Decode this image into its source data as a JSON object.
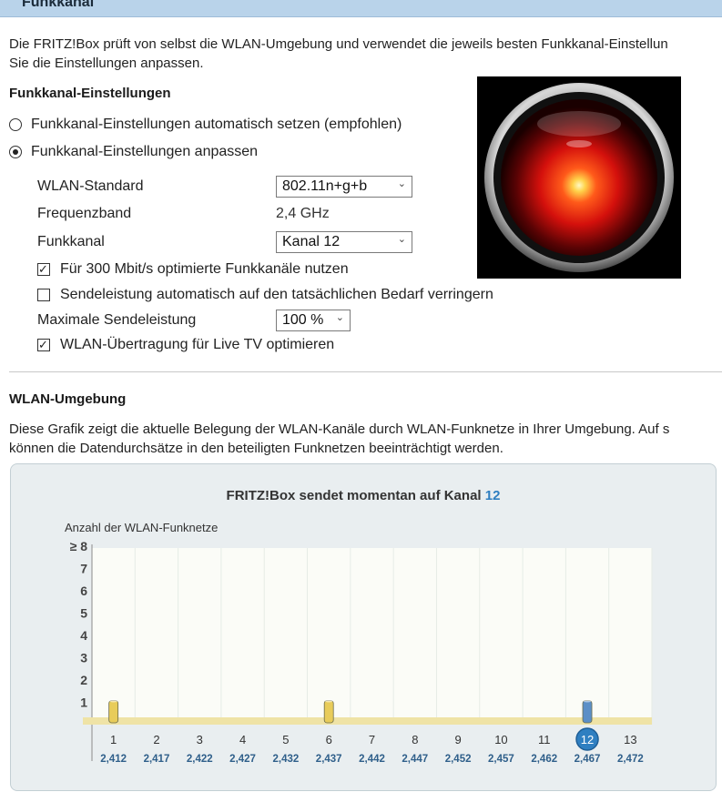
{
  "header": {
    "title": "Funkkanal"
  },
  "intro": {
    "line1": "Die FRITZ!Box prüft von selbst die WLAN-Umgebung und verwendet die jeweils besten Funkkanal-Einstellun",
    "line2": "Sie die Einstellungen anpassen."
  },
  "settings": {
    "heading": "Funkkanal-Einstellungen",
    "radio_auto": "Funkkanal-Einstellungen automatisch setzen (empfohlen)",
    "radio_custom": "Funkkanal-Einstellungen anpassen",
    "radio_selected": "custom",
    "wlan_standard_label": "WLAN-Standard",
    "wlan_standard_value": "802.11n+g+b",
    "frequency_label": "Frequenzband",
    "frequency_value": "2,4 GHz",
    "channel_label": "Funkkanal",
    "channel_value": "Kanal 12",
    "opt300_label": "Für 300 Mbit/s optimierte Funkkanäle nutzen",
    "opt300_checked": true,
    "power_auto_label": "Sendeleistung automatisch auf den tatsächlichen Bedarf verringern",
    "power_auto_checked": false,
    "max_power_label": "Maximale Sendeleistung",
    "max_power_value": "100 %",
    "livetv_label": "WLAN-Übertragung für Live TV optimieren",
    "livetv_checked": true
  },
  "environment": {
    "heading": "WLAN-Umgebung",
    "line1": "Diese Grafik zeigt die aktuelle Belegung der WLAN-Kanäle durch WLAN-Funknetze in Ihrer Umgebung. Auf s",
    "line2": "können die Datendurchsätze in den beteiligten Funknetzen beeinträchtigt werden.",
    "chart_title_prefix": "FRITZ!Box sendet momentan auf Kanal",
    "chart_title_channel": "12"
  },
  "colors": {
    "accent_blue": "#2f7fc1",
    "bar_yellow": "#e8cc5a",
    "bar_blue": "#5b8fc7",
    "baseline": "#efe3a6"
  },
  "chart_data": {
    "type": "bar",
    "ylabel": "Anzahl der WLAN-Funknetze",
    "ytick_labels": [
      "1",
      "2",
      "3",
      "4",
      "5",
      "6",
      "7",
      "≥ 8"
    ],
    "ylim": [
      0,
      8
    ],
    "categories": [
      "1",
      "2",
      "3",
      "4",
      "5",
      "6",
      "7",
      "8",
      "9",
      "10",
      "11",
      "12",
      "13"
    ],
    "frequencies": [
      "2,412",
      "2,417",
      "2,422",
      "2,427",
      "2,432",
      "2,437",
      "2,442",
      "2,447",
      "2,452",
      "2,457",
      "2,462",
      "2,467",
      "2,472"
    ],
    "values": [
      1,
      0,
      0,
      0,
      0,
      1,
      0,
      0,
      0,
      0,
      0,
      1,
      0
    ],
    "active_channel": "12",
    "grid": true
  }
}
